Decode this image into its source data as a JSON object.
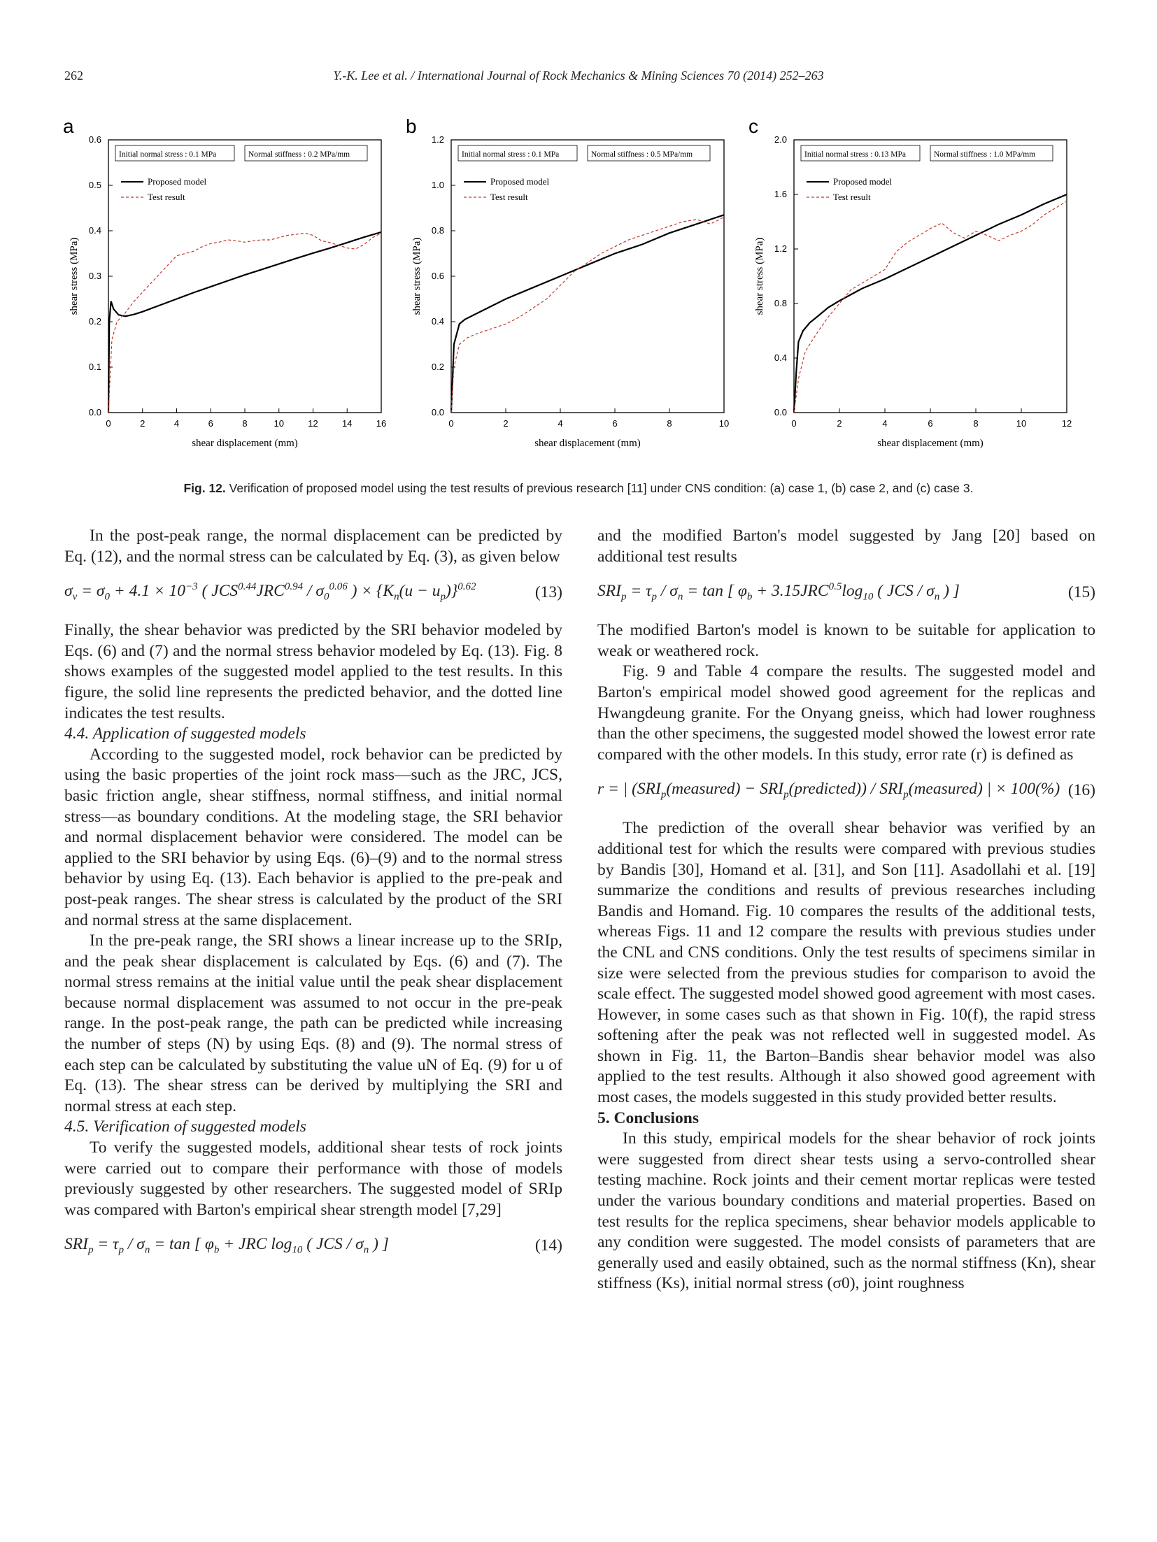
{
  "header": {
    "page_number": "262",
    "running_title": "Y.-K. Lee et al. / International Journal of Rock Mechanics & Mining Sciences 70 (2014) 252–263"
  },
  "figure": {
    "caption_label": "Fig. 12.",
    "caption_text": "Verification of proposed model using the test results of previous research [11] under CNS condition: (a) case 1, (b) case 2, and (c) case 3."
  },
  "chart_data": [
    {
      "panel": "a",
      "type": "line",
      "xlabel": "shear displacement (mm)",
      "ylabel": "shear stress (MPa)",
      "xlim": [
        0,
        16
      ],
      "ylim": [
        0,
        0.6
      ],
      "xticks": [
        0,
        2,
        4,
        6,
        8,
        10,
        12,
        14,
        16
      ],
      "yticks": [
        0.0,
        0.1,
        0.2,
        0.3,
        0.4,
        0.5,
        0.6
      ],
      "ytick_labels": [
        "0.0",
        "0.1",
        "0.2",
        "0.3",
        "0.4",
        "0.5",
        "0.6"
      ],
      "info_boxes": [
        "Initial normal stress : 0.1 MPa",
        "Normal stiffness : 0.2 MPa/mm"
      ],
      "series": [
        {
          "name": "Proposed model",
          "style": "solid",
          "color": "#000000",
          "x": [
            0,
            0.05,
            0.15,
            0.3,
            0.6,
            1.0,
            1.5,
            2,
            3,
            4,
            5,
            6,
            7,
            8,
            9,
            10,
            11,
            12,
            13,
            14,
            15,
            16
          ],
          "y": [
            0,
            0.2,
            0.245,
            0.228,
            0.215,
            0.212,
            0.216,
            0.222,
            0.236,
            0.25,
            0.264,
            0.277,
            0.29,
            0.303,
            0.315,
            0.327,
            0.339,
            0.351,
            0.362,
            0.374,
            0.386,
            0.397
          ]
        },
        {
          "name": "Test result",
          "style": "dashed",
          "color": "#c0392b",
          "x": [
            0,
            0.2,
            0.5,
            1.0,
            1.5,
            2,
            2.5,
            3,
            3.5,
            4,
            4.5,
            5,
            5.5,
            6,
            6.5,
            7,
            7.5,
            8,
            8.5,
            9,
            9.5,
            10,
            10.5,
            11,
            11.5,
            12,
            12.5,
            13,
            13.5,
            14,
            14.5,
            15,
            15.5,
            16
          ],
          "y": [
            0.0,
            0.16,
            0.2,
            0.22,
            0.245,
            0.265,
            0.285,
            0.305,
            0.325,
            0.345,
            0.35,
            0.355,
            0.365,
            0.372,
            0.375,
            0.38,
            0.378,
            0.375,
            0.378,
            0.38,
            0.38,
            0.385,
            0.39,
            0.392,
            0.395,
            0.39,
            0.378,
            0.374,
            0.368,
            0.362,
            0.36,
            0.37,
            0.385,
            0.395
          ]
        }
      ]
    },
    {
      "panel": "b",
      "type": "line",
      "xlabel": "shear displacement (mm)",
      "ylabel": "shear stress (MPa)",
      "xlim": [
        0,
        10
      ],
      "ylim": [
        0,
        1.2
      ],
      "xticks": [
        0,
        2,
        4,
        6,
        8,
        10
      ],
      "yticks": [
        0.0,
        0.2,
        0.4,
        0.6,
        0.8,
        1.0,
        1.2
      ],
      "ytick_labels": [
        "0.0",
        "0.2",
        "0.4",
        "0.6",
        "0.8",
        "1.0",
        "1.2"
      ],
      "info_boxes": [
        "Initial normal stress : 0.1 MPa",
        "Normal stiffness : 0.5 MPa/mm"
      ],
      "series": [
        {
          "name": "Proposed model",
          "style": "solid",
          "color": "#000000",
          "x": [
            0,
            0.1,
            0.3,
            0.5,
            1,
            2,
            3,
            4,
            5,
            6,
            7,
            8,
            9,
            10
          ],
          "y": [
            0,
            0.3,
            0.39,
            0.41,
            0.44,
            0.5,
            0.55,
            0.6,
            0.65,
            0.7,
            0.74,
            0.79,
            0.83,
            0.87
          ]
        },
        {
          "name": "Test result",
          "style": "dashed",
          "color": "#c0392b",
          "x": [
            0,
            0.1,
            0.3,
            0.6,
            1,
            1.5,
            2,
            2.5,
            3,
            3.5,
            4,
            4.5,
            5,
            5.5,
            6,
            6.5,
            7,
            7.5,
            8,
            8.5,
            9,
            9.5,
            10
          ],
          "y": [
            0,
            0.2,
            0.3,
            0.33,
            0.35,
            0.37,
            0.39,
            0.42,
            0.46,
            0.5,
            0.56,
            0.62,
            0.66,
            0.7,
            0.73,
            0.76,
            0.78,
            0.8,
            0.82,
            0.84,
            0.85,
            0.83,
            0.86
          ]
        }
      ]
    },
    {
      "panel": "c",
      "type": "line",
      "xlabel": "shear displacement (mm)",
      "ylabel": "shear stress (MPa)",
      "xlim": [
        0,
        12
      ],
      "ylim": [
        0,
        2.0
      ],
      "xticks": [
        0,
        2,
        4,
        6,
        8,
        10,
        12
      ],
      "yticks": [
        0.0,
        0.4,
        0.8,
        1.2,
        1.6,
        2.0
      ],
      "ytick_labels": [
        "0.0",
        "0.4",
        "0.8",
        "1.2",
        "1.6",
        "2.0"
      ],
      "info_boxes": [
        "Initial normal stress : 0.13 MPa",
        "Normal stiffness : 1.0 MPa/mm"
      ],
      "series": [
        {
          "name": "Proposed model",
          "style": "solid",
          "color": "#000000",
          "x": [
            0,
            0.1,
            0.2,
            0.4,
            0.7,
            1,
            1.5,
            2,
            3,
            4,
            5,
            6,
            7,
            8,
            9,
            10,
            11,
            12
          ],
          "y": [
            0,
            0.3,
            0.52,
            0.6,
            0.66,
            0.7,
            0.77,
            0.82,
            0.91,
            0.98,
            1.06,
            1.14,
            1.22,
            1.3,
            1.38,
            1.45,
            1.53,
            1.6
          ]
        },
        {
          "name": "Test result",
          "style": "dashed",
          "color": "#c0392b",
          "x": [
            0,
            0.2,
            0.5,
            1,
            1.5,
            2,
            2.5,
            3,
            3.5,
            4,
            4.5,
            5,
            5.5,
            6,
            6.5,
            7,
            7.5,
            8,
            8.5,
            9,
            9.5,
            10,
            10.5,
            11,
            11.5,
            12
          ],
          "y": [
            0,
            0.25,
            0.45,
            0.58,
            0.7,
            0.8,
            0.9,
            0.95,
            1.0,
            1.05,
            1.18,
            1.25,
            1.3,
            1.35,
            1.39,
            1.32,
            1.28,
            1.33,
            1.3,
            1.26,
            1.3,
            1.33,
            1.38,
            1.45,
            1.5,
            1.55
          ]
        }
      ]
    }
  ],
  "left_column": {
    "p1": "In the post-peak range, the normal displacement can be predicted by Eq. (12), and the normal stress can be calculated by Eq. (3), as given below",
    "eq13_number": "(13)",
    "p2": "Finally, the shear behavior was predicted by the SRI behavior modeled by Eqs. (6) and (7) and the normal stress behavior modeled by Eq. (13). Fig. 8 shows examples of the suggested model applied to the test results. In this figure, the solid line represents the predicted behavior, and the dotted line indicates the test results.",
    "sec44": "4.4.  Application of suggested models",
    "p3": "According to the suggested model, rock behavior can be predicted by using the basic properties of the joint rock mass—such as the JRC, JCS, basic friction angle, shear stiffness, normal stiffness, and initial normal stress—as boundary conditions. At the modeling stage, the SRI behavior and normal displacement behavior were considered. The model can be applied to the SRI behavior by using Eqs. (6)–(9) and to the normal stress behavior by using Eq. (13). Each behavior is applied to the pre-peak and post-peak ranges. The shear stress is calculated by the product of the SRI and normal stress at the same displacement.",
    "p4": "In the pre-peak range, the SRI shows a linear increase up to the SRIp, and the peak shear displacement is calculated by Eqs. (6) and (7). The normal stress remains at the initial value until the peak shear displacement because normal displacement was assumed to not occur in the pre-peak range. In the post-peak range, the path can be predicted while increasing the number of steps (N) by using Eqs. (8) and (9). The normal stress of each step can be calculated by substituting the value uN of Eq. (9) for u of Eq. (13). The shear stress can be derived by multiplying the SRI and normal stress at each step.",
    "sec45": "4.5.  Verification of suggested models",
    "p5": "To verify the suggested models, additional shear tests of rock joints were carried out to compare their performance with those of models previously suggested by other researchers. The suggested model of SRIp was compared with Barton's empirical shear strength model [7,29]",
    "eq14_number": "(14)"
  },
  "right_column": {
    "p1": "and the modified Barton's model suggested by Jang [20] based on additional test results",
    "eq15_number": "(15)",
    "p2": "The modified Barton's model is known to be suitable for application to weak or weathered rock.",
    "p3": "Fig. 9 and Table 4 compare the results. The suggested model and Barton's empirical model showed good agreement for the replicas and Hwangdeung granite. For the Onyang gneiss, which had lower roughness than the other specimens, the suggested model showed the lowest error rate compared with the other models. In this study, error rate (r) is defined as",
    "eq16_number": "(16)",
    "p4": "The prediction of the overall shear behavior was verified by an additional test for which the results were compared with previous studies by Bandis [30], Homand et al. [31], and Son [11]. Asadollahi et al. [19] summarize the conditions and results of previous researches including Bandis and Homand. Fig. 10 compares the results of the additional tests, whereas Figs. 11 and 12 compare the results with previous studies under the CNL and CNS conditions. Only the test results of specimens similar in size were selected from the previous studies for comparison to avoid the scale effect. The suggested model showed good agreement with most cases. However, in some cases such as that shown in Fig. 10(f), the rapid stress softening after the peak was not reflected well in suggested model. As shown in Fig. 11, the Barton–Bandis shear behavior model was also applied to the test results. Although it also showed good agreement with most cases, the models suggested in this study provided better results.",
    "sec5": "5.  Conclusions",
    "p5": "In this study, empirical models for the shear behavior of rock joints were suggested from direct shear tests using a servo-controlled shear testing machine. Rock joints and their cement mortar replicas were tested under the various boundary conditions and material properties. Based on test results for the replica specimens, shear behavior models applicable to any condition were suggested. The model consists of parameters that are generally used and easily obtained, such as the normal stiffness (Kn), shear stiffness (Ks), initial normal stress (σ0), joint roughness"
  }
}
